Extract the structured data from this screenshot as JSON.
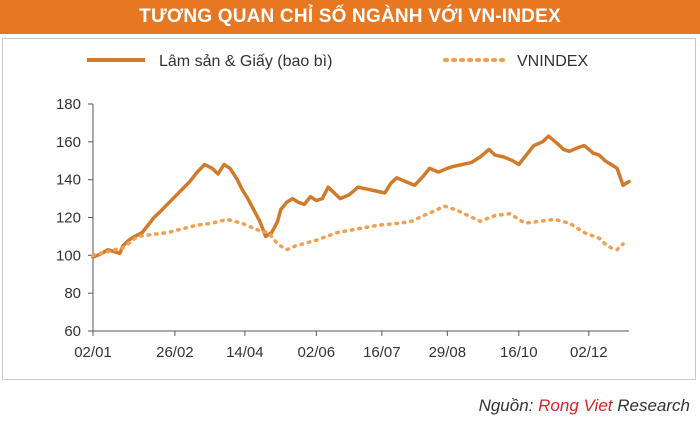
{
  "title": "TƯƠNG QUAN CHỈ SỐ NGÀNH VỚI VN-INDEX",
  "colors": {
    "title_bg": "#e87722",
    "line_sector": "#d07a2a",
    "line_index": "#f0a050",
    "axis": "#555555",
    "text": "#333333"
  },
  "source": {
    "label": "Nguồn:",
    "brand": "Rong Viet",
    "suffix": "Research"
  },
  "chart_data": {
    "type": "line",
    "title": "TƯƠNG QUAN CHỈ SỐ NGÀNH VỚI VN-INDEX",
    "xlabel": "",
    "ylabel": "",
    "ylim": [
      60,
      180
    ],
    "yticks": [
      "180",
      "160",
      "140",
      "120",
      "100",
      "80",
      "60"
    ],
    "ytick_values": [
      180,
      160,
      140,
      120,
      100,
      80,
      60
    ],
    "xtick_labels": [
      "02/01",
      "26/02",
      "14/04",
      "02/06",
      "16/07",
      "29/08",
      "16/10",
      "02/12"
    ],
    "x_range": [
      0,
      360
    ],
    "xtick_positions": [
      0,
      55,
      102,
      150,
      194,
      238,
      286,
      333
    ],
    "grid": false,
    "legend_position": "top",
    "series": [
      {
        "name": "Lâm sản & Giấy (bao bì)",
        "style": "solid",
        "x": [
          0,
          6,
          10,
          14,
          18,
          20,
          24,
          28,
          33,
          38,
          41,
          45,
          50,
          55,
          60,
          65,
          70,
          75,
          80,
          84,
          88,
          92,
          97,
          100,
          104,
          108,
          112,
          116,
          120,
          124,
          126,
          130,
          134,
          138,
          142,
          146,
          150,
          154,
          158,
          162,
          166,
          172,
          178,
          184,
          190,
          196,
          200,
          204,
          210,
          216,
          222,
          226,
          232,
          238,
          242,
          248,
          254,
          260,
          266,
          270,
          276,
          282,
          286,
          290,
          296,
          302,
          306,
          312,
          316,
          320,
          326,
          330,
          336,
          340,
          344,
          348,
          352,
          356,
          360
        ],
        "values": [
          99,
          101,
          103,
          102,
          101,
          105,
          108,
          110,
          112,
          117,
          120,
          123,
          127,
          131,
          135,
          139,
          144,
          148,
          146,
          143,
          148,
          146,
          140,
          135,
          130,
          124,
          118,
          110,
          112,
          118,
          124,
          128,
          130,
          128,
          127,
          131,
          129,
          130,
          136,
          133,
          130,
          132,
          136,
          135,
          134,
          133,
          138,
          141,
          139,
          137,
          142,
          146,
          144,
          146,
          147,
          148,
          149,
          152,
          156,
          153,
          152,
          150,
          148,
          152,
          158,
          160,
          163,
          159,
          156,
          155,
          157,
          158,
          154,
          153,
          150,
          148,
          146,
          137,
          139
        ]
      },
      {
        "name": "VNINDEX",
        "style": "dotted",
        "x": [
          0,
          10,
          20,
          30,
          40,
          50,
          60,
          70,
          80,
          90,
          100,
          106,
          112,
          118,
          124,
          130,
          136,
          150,
          164,
          178,
          192,
          206,
          214,
          222,
          228,
          236,
          244,
          252,
          260,
          270,
          280,
          290,
          300,
          310,
          320,
          330,
          340,
          344,
          348,
          352,
          356
        ],
        "values": [
          100,
          102,
          104,
          110,
          111,
          112,
          114,
          116,
          117,
          119,
          117,
          115,
          113,
          112,
          106,
          103,
          105,
          108,
          112,
          114,
          116,
          117,
          118,
          121,
          123,
          126,
          124,
          121,
          118,
          121,
          122,
          117,
          118,
          119,
          117,
          112,
          109,
          106,
          104,
          103,
          106
        ]
      }
    ]
  }
}
